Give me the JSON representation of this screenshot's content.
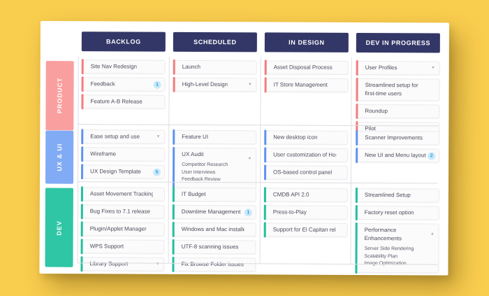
{
  "page": {
    "background_color": "#f9cd4e"
  },
  "board": {
    "header_color": "#333767",
    "badge_style": {
      "bg": "#cae9fb",
      "fg": "#2d9fd8"
    },
    "columns": [
      {
        "label": "BACKLOG"
      },
      {
        "label": "SCHEDULED"
      },
      {
        "label": "IN DESIGN"
      },
      {
        "label": "DEV IN PROGRESS"
      }
    ],
    "lanes": [
      {
        "label": "PRODUCT",
        "color": "#fa9f9f",
        "accent": "#f47c7c",
        "cells": [
          [
            {
              "label": "Site Nav Redesign"
            },
            {
              "label": "Feedback",
              "badge": "1"
            },
            {
              "label": "Feature A-B Release"
            }
          ],
          [
            {
              "label": "Launch"
            },
            {
              "label": "High-Level Design",
              "chevron": "down"
            }
          ],
          [
            {
              "label": "Asset Disposal Process"
            },
            {
              "label": "IT Store Management"
            }
          ],
          [
            {
              "label": "User Profiles",
              "chevron": "down"
            },
            {
              "label": "Streamlined setup for first-time users"
            },
            {
              "label": "Roundup"
            },
            {
              "label": "Pilot"
            }
          ]
        ]
      },
      {
        "label": "UX & UI",
        "color": "#82abf5",
        "accent": "#6093f1",
        "cells": [
          [
            {
              "label": "Ease setup and use",
              "chevron": "down"
            },
            {
              "label": "Wireframe"
            },
            {
              "label": "UX Design Template",
              "badge": "5"
            }
          ],
          [
            {
              "label": "Feature UI"
            },
            {
              "label": "UX Audit",
              "chevron": "up",
              "subitems": [
                "Competitor Research",
                "User Interviews",
                "Feedback Review"
              ]
            }
          ],
          [
            {
              "label": "New desktop icon"
            },
            {
              "label": "User customization of Home Menu"
            },
            {
              "label": "OS-based control panel"
            }
          ],
          [
            {
              "label": "Scanner Improvements"
            },
            {
              "label": "New UI and Menu layout",
              "badge": "2"
            }
          ]
        ]
      },
      {
        "label": "DEV",
        "color": "#2fc6a5",
        "accent": "#23bf9d",
        "cells": [
          [
            {
              "label": "Asset Movement Tracking"
            },
            {
              "label": "Bug Fixes to 7.1 release"
            },
            {
              "label": "Plugin/Applet Manager"
            },
            {
              "label": "WPS Support"
            },
            {
              "label": "Library Support",
              "chevron": "down"
            }
          ],
          [
            {
              "label": "IT Budget"
            },
            {
              "label": "Downtime Management",
              "badge": "1"
            },
            {
              "label": "Windows and Mac installers"
            },
            {
              "label": "UTF-8 scanning issues"
            },
            {
              "label": "Fix Browse Folder issues"
            }
          ],
          [
            {
              "label": "CMDB API 2.0"
            },
            {
              "label": "Press-to-Play"
            },
            {
              "label": "Support for El Capitan release"
            }
          ],
          [
            {
              "label": "Streamlined Setup"
            },
            {
              "label": "Factory reset option"
            },
            {
              "label": "Performance Enhancements",
              "chevron": "up",
              "subitems": [
                "Server Side Rendering",
                "Scalability Plan",
                "Image Optimization"
              ]
            }
          ]
        ]
      }
    ]
  }
}
